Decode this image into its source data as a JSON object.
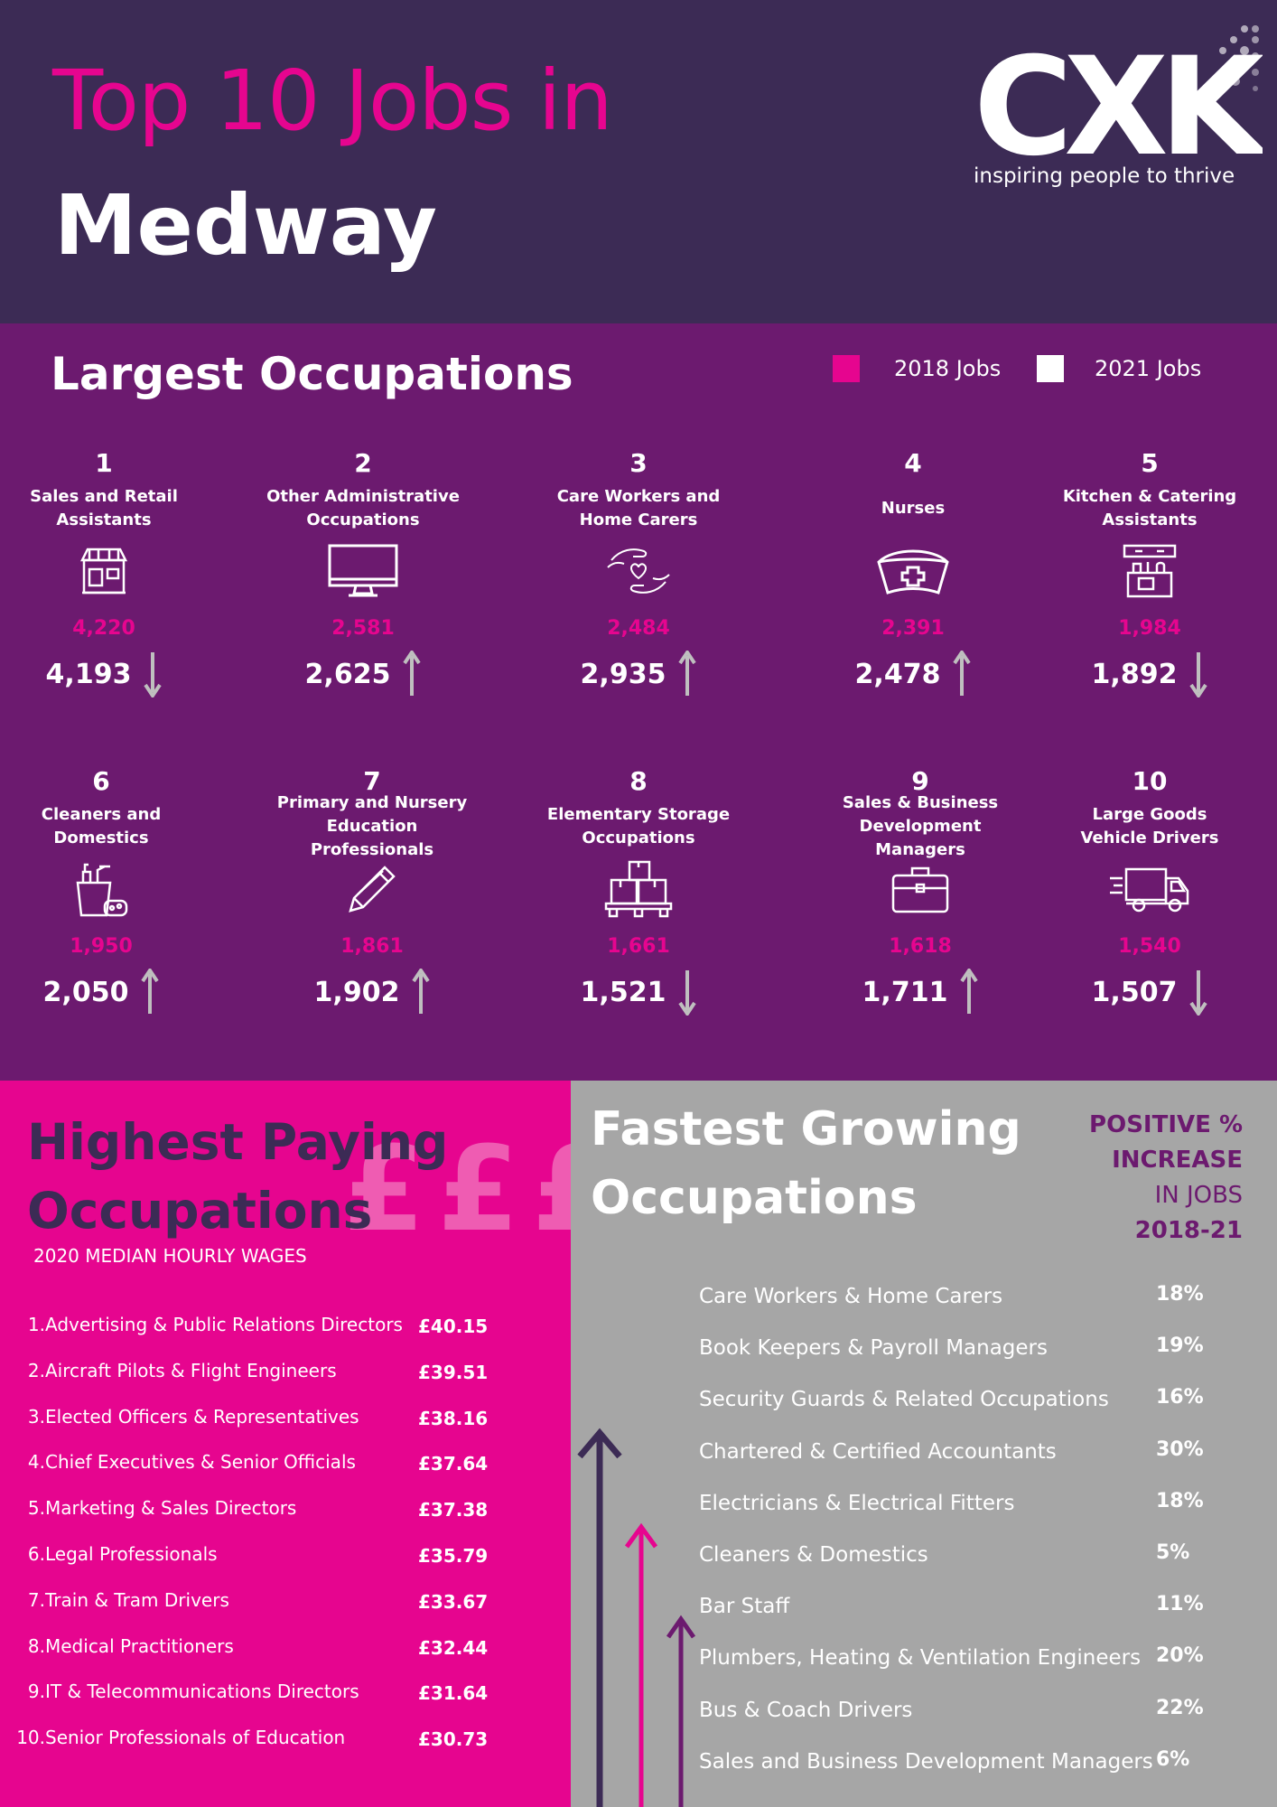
{
  "header": {
    "title_line1": "Top 10 Jobs in",
    "title_line2": "Medway",
    "logo": "CXK",
    "tagline": "inspiring people to thrive"
  },
  "occupations": {
    "title": "Largest Occupations",
    "legend": {
      "jobs_2018": "2018 Jobs",
      "jobs_2021": "2021 Jobs"
    },
    "colors": {
      "jobs_2018": "#e6058f",
      "jobs_2021": "#ffffff"
    },
    "items": [
      {
        "rank": "1",
        "name_line1": "Sales and Retail",
        "name_line2": "Assistants",
        "jobs_2018": "4,220",
        "jobs_2021": "4,193",
        "trend": "down",
        "icon": "shop-icon"
      },
      {
        "rank": "2",
        "name_line1": "Other Administrative",
        "name_line2": "Occupations",
        "jobs_2018": "2,581",
        "jobs_2021": "2,625",
        "trend": "up",
        "icon": "monitor-icon"
      },
      {
        "rank": "3",
        "name_line1": "Care Workers and",
        "name_line2": "Home Carers",
        "jobs_2018": "2,484",
        "jobs_2021": "2,935",
        "trend": "up",
        "icon": "caring-hands-icon"
      },
      {
        "rank": "4",
        "name_line1": "Nurses",
        "name_line2": "",
        "jobs_2018": "2,391",
        "jobs_2021": "2,478",
        "trend": "up",
        "icon": "nurse-cap-icon"
      },
      {
        "rank": "5",
        "name_line1": "Kitchen & Catering",
        "name_line2": "Assistants",
        "jobs_2018": "1,984",
        "jobs_2021": "1,892",
        "trend": "down",
        "icon": "kitchen-icon"
      },
      {
        "rank": "6",
        "name_line1": "Cleaners and",
        "name_line2": "Domestics",
        "jobs_2018": "1,950",
        "jobs_2021": "2,050",
        "trend": "up",
        "icon": "cleaning-supplies-icon"
      },
      {
        "rank": "7",
        "name_line1": "Primary and Nursery",
        "name_line2": "Education Professionals",
        "jobs_2018": "1,861",
        "jobs_2021": "1,902",
        "trend": "up",
        "icon": "pencil-icon"
      },
      {
        "rank": "8",
        "name_line1": "Elementary Storage",
        "name_line2": "Occupations",
        "jobs_2018": "1,661",
        "jobs_2021": "1,521",
        "trend": "down",
        "icon": "boxes-pallet-icon"
      },
      {
        "rank": "9",
        "name_line1": "Sales & Business",
        "name_line2": "Development Managers",
        "jobs_2018": "1,618",
        "jobs_2021": "1,711",
        "trend": "up",
        "icon": "briefcase-icon"
      },
      {
        "rank": "10",
        "name_line1": "Large Goods",
        "name_line2": "Vehicle Drivers",
        "jobs_2018": "1,540",
        "jobs_2021": "1,507",
        "trend": "down",
        "icon": "truck-icon"
      }
    ]
  },
  "highest_paying": {
    "title_line1": "Highest Paying",
    "title_line2": "Occupations",
    "decoration": "£££",
    "subtitle": "2020 MEDIAN HOURLY WAGES",
    "items": [
      {
        "index": "1.",
        "job": "Advertising & Public Relations Directors",
        "wage": "£40.15"
      },
      {
        "index": "2.",
        "job": "Aircraft Pilots & Flight Engineers",
        "wage": "£39.51"
      },
      {
        "index": "3.",
        "job": "Elected Officers & Representatives",
        "wage": "£38.16"
      },
      {
        "index": "4.",
        "job": "Chief Executives & Senior Officials",
        "wage": "£37.64"
      },
      {
        "index": "5.",
        "job": "Marketing & Sales Directors",
        "wage": "£37.38"
      },
      {
        "index": "6.",
        "job": "Legal Professionals",
        "wage": "£35.79"
      },
      {
        "index": "7.",
        "job": "Train & Tram Drivers",
        "wage": "£33.67"
      },
      {
        "index": "8.",
        "job": "Medical Practitioners",
        "wage": "£32.44"
      },
      {
        "index": "9.",
        "job": "IT & Telecommunications Directors",
        "wage": "£31.64"
      },
      {
        "index": "10.",
        "job": "Senior Professionals of Education",
        "wage": "£30.73"
      }
    ]
  },
  "fastest_growing": {
    "title_line1": "Fastest Growing",
    "title_line2": "Occupations",
    "note_line1": "POSITIVE %",
    "note_line2": "INCREASE",
    "note_line3": "IN JOBS",
    "note_line4": "2018-21",
    "arrow_colors": [
      "#3c2b55",
      "#e6058f",
      "#6c1a6f"
    ],
    "items": [
      {
        "job": "Care Workers & Home Carers",
        "pct": "18%"
      },
      {
        "job": "Book Keepers & Payroll Managers",
        "pct": "19%"
      },
      {
        "job": "Security Guards & Related Occupations",
        "pct": "16%"
      },
      {
        "job": "Chartered & Certified Accountants",
        "pct": "30%"
      },
      {
        "job": "Electricians & Electrical Fitters",
        "pct": "18%"
      },
      {
        "job": "Cleaners & Domestics",
        "pct": "5%"
      },
      {
        "job": "Bar Staff",
        "pct": "11%"
      },
      {
        "job": "Plumbers, Heating & Ventilation Engineers",
        "pct": "20%"
      },
      {
        "job": "Bus & Coach Drivers",
        "pct": "22%"
      },
      {
        "job": "Sales and Business Development Managers",
        "pct": "6%"
      }
    ]
  }
}
